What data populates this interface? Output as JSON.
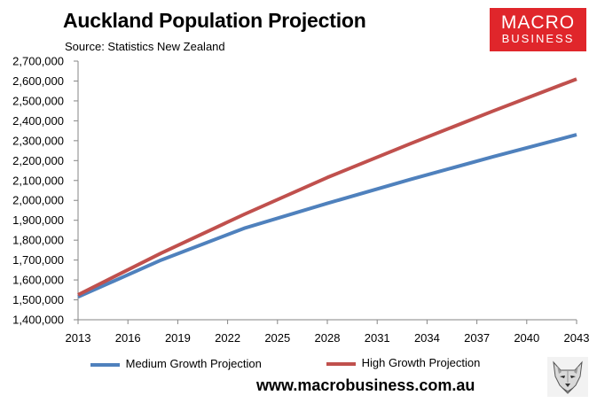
{
  "header": {
    "title": "Auckland Population Projection",
    "source": "Source: Statistics New Zealand"
  },
  "logo": {
    "line1": "MACRO",
    "line2": "BUSINESS",
    "background": "#e0262b",
    "icon": "macrobusiness-logo"
  },
  "footer": {
    "website": "www.macrobusiness.com.au",
    "mascot_icon": "wolf-icon"
  },
  "chart_data": {
    "type": "line",
    "title": "Auckland Population Projection",
    "xlabel": "",
    "ylabel": "",
    "xlim": [
      2013,
      2043
    ],
    "ylim": [
      1400000,
      2700000
    ],
    "x_ticks": [
      2013,
      2016,
      2019,
      2022,
      2025,
      2028,
      2031,
      2034,
      2037,
      2040,
      2043
    ],
    "x_tick_labels": [
      "2013",
      "2016",
      "2019",
      "2022",
      "2025",
      "2028",
      "2031",
      "2034",
      "2037",
      "2040",
      "2043"
    ],
    "y_ticks": [
      1400000,
      1500000,
      1600000,
      1700000,
      1800000,
      1900000,
      2000000,
      2100000,
      2200000,
      2300000,
      2400000,
      2500000,
      2600000,
      2700000
    ],
    "y_tick_labels": [
      "1,400,000",
      "1,500,000",
      "1,600,000",
      "1,700,000",
      "1,800,000",
      "1,900,000",
      "2,000,000",
      "2,100,000",
      "2,200,000",
      "2,300,000",
      "2,400,000",
      "2,500,000",
      "2,600,000",
      "2,700,000"
    ],
    "grid": false,
    "legend_position": "bottom",
    "series": [
      {
        "name": "Medium Growth Projection",
        "color": "#4f81bd",
        "x": [
          2013,
          2018,
          2023,
          2028,
          2033,
          2038,
          2043
        ],
        "values": [
          1515000,
          1700000,
          1860000,
          1985000,
          2105000,
          2220000,
          2330000
        ]
      },
      {
        "name": "High Growth Projection",
        "color": "#c0504d",
        "x": [
          2013,
          2018,
          2023,
          2028,
          2033,
          2038,
          2043
        ],
        "values": [
          1525000,
          1735000,
          1930000,
          2115000,
          2285000,
          2450000,
          2610000
        ]
      }
    ]
  }
}
